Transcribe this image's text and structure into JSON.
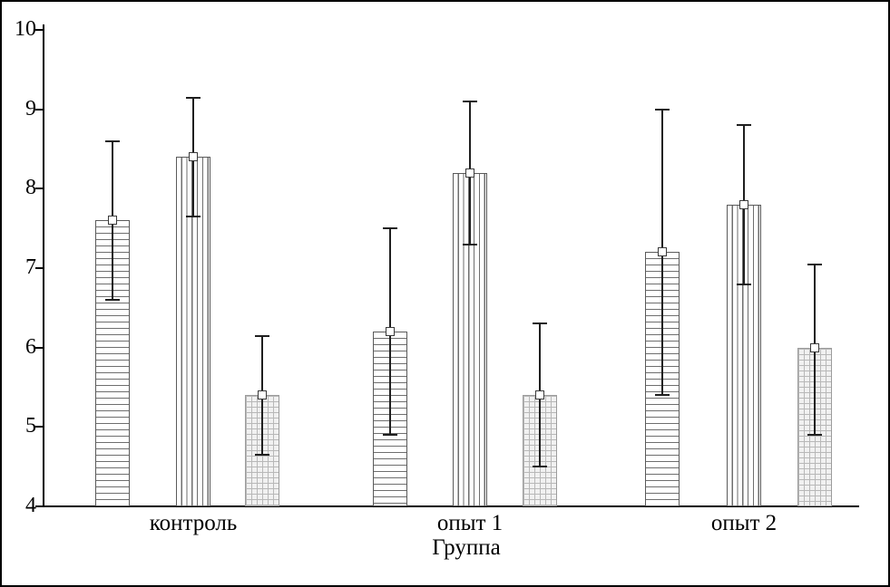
{
  "figure": {
    "background": "#ffffff",
    "border_color": "#000000",
    "bar_outline_color": "#5a5a5a",
    "error_bar_color": "#1f1f1f"
  },
  "chart_data": {
    "type": "bar",
    "title": "",
    "xlabel": "Группа",
    "ylabel": "",
    "ylim": [
      4,
      10
    ],
    "yticks": [
      4,
      5,
      6,
      7,
      8,
      9,
      10
    ],
    "categories": [
      "контроль",
      "опыт 1",
      "опыт 2"
    ],
    "grid": false,
    "legend": "none",
    "series": [
      {
        "name": "series-1-horizontal-hatch",
        "pattern": "horizontal",
        "values": [
          7.6,
          6.2,
          7.2
        ],
        "error_low": [
          6.6,
          4.9,
          5.4
        ],
        "error_high": [
          8.6,
          7.5,
          9.0
        ]
      },
      {
        "name": "series-2-vertical-hatch",
        "pattern": "vertical",
        "values": [
          8.4,
          8.2,
          7.8
        ],
        "error_low": [
          7.65,
          7.3,
          6.8
        ],
        "error_high": [
          9.15,
          9.1,
          8.8
        ]
      },
      {
        "name": "series-3-grid-hatch",
        "pattern": "grid",
        "values": [
          5.4,
          5.4,
          6.0
        ],
        "error_low": [
          4.65,
          4.5,
          4.9
        ],
        "error_high": [
          6.15,
          6.3,
          7.05
        ]
      }
    ]
  }
}
